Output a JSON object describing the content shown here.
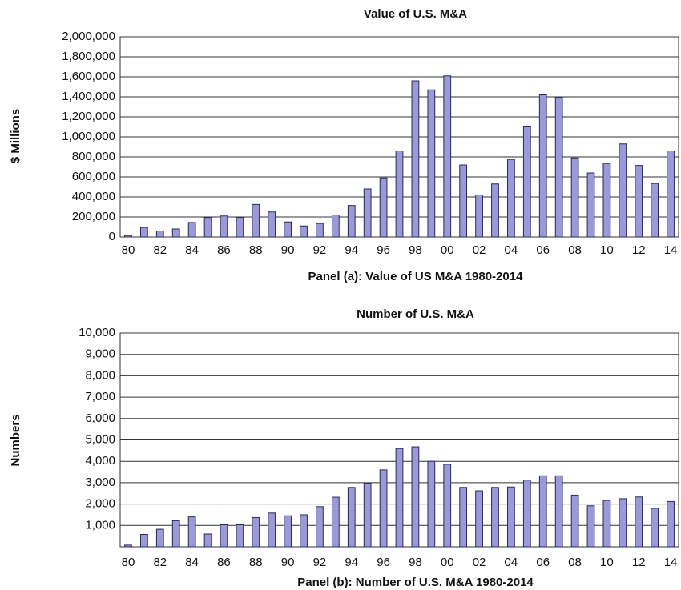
{
  "chart_data": [
    {
      "type": "bar",
      "title": "Value of U.S. M&A",
      "y_label": "$ Millions",
      "x_label": "Panel (a): Value of US M&A 1980-2014",
      "categories": [
        "80",
        null,
        "82",
        null,
        "84",
        null,
        "86",
        null,
        "88",
        null,
        "90",
        null,
        "92",
        null,
        "94",
        null,
        "96",
        null,
        "98",
        null,
        "00",
        null,
        "02",
        null,
        "04",
        null,
        "06",
        null,
        "08",
        null,
        "10",
        null,
        "12",
        null,
        "14"
      ],
      "values": [
        15000,
        95000,
        60000,
        80000,
        145000,
        195000,
        210000,
        195000,
        325000,
        250000,
        150000,
        110000,
        135000,
        220000,
        315000,
        480000,
        590000,
        860000,
        1560000,
        1470000,
        1610000,
        720000,
        420000,
        530000,
        775000,
        1100000,
        1420000,
        1395000,
        790000,
        640000,
        735000,
        930000,
        715000,
        535000,
        860000
      ],
      "color": "#9a9ad8",
      "ylim": [
        0,
        2000000
      ],
      "yticks": [
        0,
        {
          "value": 200000,
          "label": "200,000"
        },
        {
          "value": 400000,
          "label": "400,000"
        },
        {
          "value": 600000,
          "label": "600,000"
        },
        {
          "value": 800000,
          "label": "800,000"
        },
        {
          "value": 1000000,
          "label": "1,000,000"
        },
        {
          "value": 1200000,
          "label": "1,200,000"
        },
        {
          "value": 1400000,
          "label": "1,400,000"
        },
        {
          "value": 1600000,
          "label": "1,600,000"
        },
        {
          "value": 1800000,
          "label": "1,800,000"
        },
        {
          "value": 2000000,
          "label": "2,000,000"
        }
      ],
      "grid": true
    },
    {
      "type": "bar",
      "title": "Number of U.S. M&A",
      "y_label": "Numbers",
      "x_label": "Panel (b): Number of U.S. M&A 1980-2014",
      "categories": [
        "80",
        null,
        "82",
        null,
        "84",
        null,
        "86",
        null,
        "88",
        null,
        "90",
        null,
        "92",
        null,
        "94",
        null,
        "96",
        null,
        "98",
        null,
        "00",
        null,
        "02",
        null,
        "04",
        null,
        "06",
        null,
        "08",
        null,
        "10",
        null,
        "12",
        null,
        "14"
      ],
      "values": [
        80,
        580,
        820,
        1220,
        1400,
        600,
        1030,
        1030,
        1370,
        1580,
        1450,
        1500,
        1880,
        2320,
        2780,
        2980,
        3600,
        4600,
        4680,
        4000,
        3860,
        2780,
        2620,
        2780,
        2800,
        3120,
        3320,
        3320,
        2420,
        1920,
        2170,
        2250,
        2330,
        1800,
        2120
      ],
      "color": "#9a9ad8",
      "ylim": [
        0,
        10000
      ],
      "yticks": [
        {
          "value": 1000,
          "label": "1,000"
        },
        {
          "value": 2000,
          "label": "2,000"
        },
        {
          "value": 3000,
          "label": "3,000"
        },
        {
          "value": 4000,
          "label": "4,000"
        },
        {
          "value": 5000,
          "label": "5,000"
        },
        {
          "value": 6000,
          "label": "6,000"
        },
        {
          "value": 7000,
          "label": "7,000"
        },
        {
          "value": 8000,
          "label": "8,000"
        },
        {
          "value": 9000,
          "label": "9,000"
        },
        {
          "value": 10000,
          "label": "10,000"
        }
      ],
      "grid": true
    }
  ]
}
